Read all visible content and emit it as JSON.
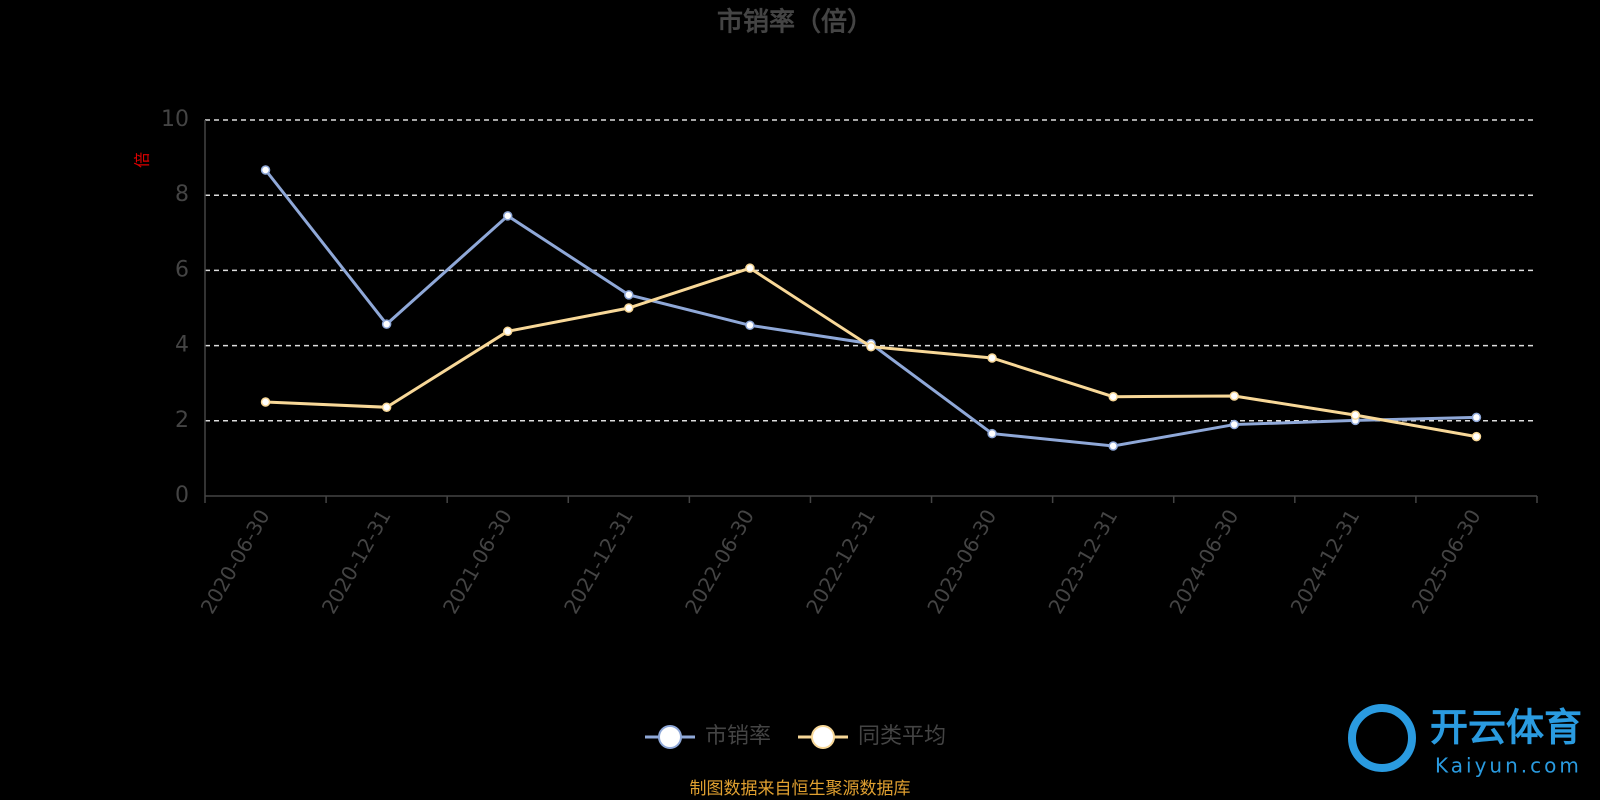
{
  "chart_data": {
    "type": "line",
    "title": "市销率（倍）",
    "y_label": "倍",
    "categories": [
      "2020-06-30",
      "2020-12-31",
      "2021-06-30",
      "2021-12-31",
      "2022-06-30",
      "2022-12-31",
      "2023-06-30",
      "2023-12-31",
      "2024-06-30",
      "2024-12-31",
      "2025-06-30"
    ],
    "series": [
      {
        "name": "市销率",
        "color": "#8fa8d8",
        "values": [
          8.67,
          4.57,
          7.45,
          5.35,
          4.54,
          4.05,
          1.66,
          1.33,
          1.9,
          2.01,
          2.09
        ]
      },
      {
        "name": "同类平均",
        "color": "#f8d898",
        "values": [
          2.5,
          2.36,
          4.38,
          5.0,
          6.06,
          3.97,
          3.67,
          2.64,
          2.66,
          2.15,
          1.58
        ]
      }
    ],
    "ylim": [
      0,
      10
    ],
    "yticks": [
      0,
      2,
      4,
      6,
      8,
      10
    ],
    "grid": true,
    "source": "制图数据来自恒生聚源数据库",
    "watermark": {
      "brand": "开云体育",
      "url": "Kaiyun.com"
    }
  }
}
